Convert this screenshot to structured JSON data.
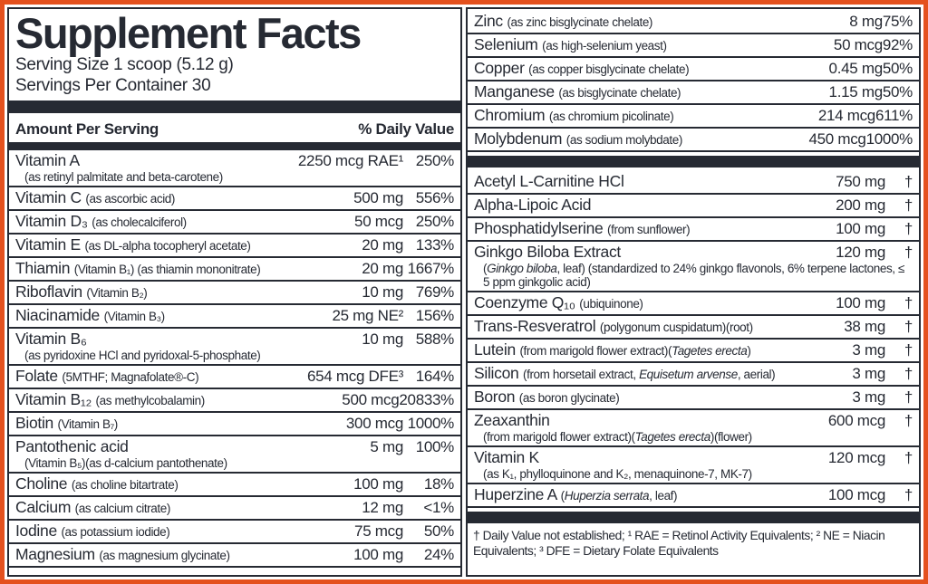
{
  "label": {
    "title": "Supplement Facts",
    "serving_size": "Serving Size 1 scoop (5.12 g)",
    "servings_per_container": "Servings Per Container 30",
    "column_headers": {
      "amount": "Amount Per Serving",
      "daily_value": "% Daily Value"
    },
    "colors": {
      "border_accent": "#e4511e",
      "ink": "#262a33",
      "background": "#ffffff"
    },
    "footnote": "† Daily Value not established; ¹ RAE = Retinol Activity Equivalents; ² NE = Niacin Equivalents; ³ DFE = Dietary Folate Equivalents",
    "left_rows": [
      {
        "name": [
          [
            "Vitamin A",
            "m"
          ]
        ],
        "amount": "2250 mcg RAE¹",
        "dv": "250%",
        "sub": [
          [
            "(as retinyl palmitate and beta-carotene)",
            "p"
          ]
        ]
      },
      {
        "name": [
          [
            "Vitamin C ",
            "m"
          ],
          [
            "(as ascorbic acid)",
            "s"
          ]
        ],
        "amount": "500 mg",
        "dv": "556%"
      },
      {
        "name": [
          [
            "Vitamin D₃ ",
            "m"
          ],
          [
            "(as cholecalciferol)",
            "s"
          ]
        ],
        "amount": "50 mcg",
        "dv": "250%"
      },
      {
        "name": [
          [
            "Vitamin E ",
            "m"
          ],
          [
            "(as DL-alpha tocopheryl acetate)",
            "s"
          ]
        ],
        "amount": "20 mg",
        "dv": "133%"
      },
      {
        "name": [
          [
            "Thiamin ",
            "m"
          ],
          [
            "(Vitamin B₁) (as thiamin mononitrate)",
            "s"
          ]
        ],
        "amount": "20 mg",
        "dv": "1667%"
      },
      {
        "name": [
          [
            "Riboflavin ",
            "m"
          ],
          [
            "(Vitamin B₂)",
            "s"
          ]
        ],
        "amount": "10 mg",
        "dv": "769%"
      },
      {
        "name": [
          [
            "Niacinamide ",
            "m"
          ],
          [
            "(Vitamin B₃)",
            "s"
          ]
        ],
        "amount": "25 mg NE²",
        "dv": "156%"
      },
      {
        "name": [
          [
            "Vitamin B₆",
            "m"
          ]
        ],
        "amount": "10 mg",
        "dv": "588%",
        "sub": [
          [
            "(as pyridoxine HCl and pyridoxal-5-phosphate)",
            "p"
          ]
        ]
      },
      {
        "name": [
          [
            "Folate ",
            "m"
          ],
          [
            "(5MTHF;  Magnafolate®-C)",
            "s"
          ]
        ],
        "amount": "654 mcg DFE³",
        "dv": "164%"
      },
      {
        "name": [
          [
            "Vitamin B₁₂ ",
            "m"
          ],
          [
            "(as methylcobalamin)",
            "s"
          ]
        ],
        "amount": "500 mcg",
        "dv": "20833%"
      },
      {
        "name": [
          [
            "Biotin ",
            "m"
          ],
          [
            "(Vitamin B₇)",
            "s"
          ]
        ],
        "amount": "300 mcg",
        "dv": "1000%"
      },
      {
        "name": [
          [
            "Pantothenic acid",
            "m"
          ]
        ],
        "amount": "5 mg",
        "dv": "100%",
        "sub": [
          [
            "(Vitamin B₅)(as d-calcium pantothenate)",
            "p"
          ]
        ]
      },
      {
        "name": [
          [
            "Choline ",
            "m"
          ],
          [
            "(as choline bitartrate)",
            "s"
          ]
        ],
        "amount": "100 mg",
        "dv": "18%"
      },
      {
        "name": [
          [
            "Calcium ",
            "m"
          ],
          [
            "(as calcium citrate)",
            "s"
          ]
        ],
        "amount": "12 mg",
        "dv": "<1%"
      },
      {
        "name": [
          [
            "Iodine ",
            "m"
          ],
          [
            "(as potassium iodide)",
            "s"
          ]
        ],
        "amount": "75 mcg",
        "dv": "50%"
      },
      {
        "name": [
          [
            "Magnesium ",
            "m"
          ],
          [
            "(as magnesium glycinate)",
            "s"
          ]
        ],
        "amount": "100 mg",
        "dv": "24%"
      }
    ],
    "right_rows": [
      {
        "name": [
          [
            "Zinc ",
            "m"
          ],
          [
            "(as zinc bisglycinate chelate)",
            "s"
          ]
        ],
        "amount": "8 mg",
        "dv": "75%"
      },
      {
        "name": [
          [
            "Selenium ",
            "m"
          ],
          [
            "(as high-selenium yeast)",
            "s"
          ]
        ],
        "amount": "50 mcg",
        "dv": "92%"
      },
      {
        "name": [
          [
            "Copper ",
            "m"
          ],
          [
            "(as copper bisglycinate chelate)",
            "s"
          ]
        ],
        "amount": "0.45 mg",
        "dv": "50%"
      },
      {
        "name": [
          [
            "Manganese ",
            "m"
          ],
          [
            "(as bisglycinate chelate)",
            "s"
          ]
        ],
        "amount": "1.15 mg",
        "dv": "50%"
      },
      {
        "name": [
          [
            "Chromium ",
            "m"
          ],
          [
            "(as chromium picolinate)",
            "s"
          ]
        ],
        "amount": "214 mcg",
        "dv": "611%"
      },
      {
        "name": [
          [
            "Molybdenum ",
            "m"
          ],
          [
            "(as sodium molybdate)",
            "s"
          ]
        ],
        "amount": "450 mcg",
        "dv": "1000%"
      },
      {
        "bar": true
      },
      {
        "name": [
          [
            "Acetyl L-Carnitine HCl",
            "m"
          ]
        ],
        "amount": "750 mg",
        "dv": "†"
      },
      {
        "name": [
          [
            "Alpha-Lipoic Acid",
            "m"
          ]
        ],
        "amount": "200 mg",
        "dv": "†"
      },
      {
        "name": [
          [
            "Phosphatidylserine ",
            "m"
          ],
          [
            "(from sunflower)",
            "s"
          ]
        ],
        "amount": "100 mg",
        "dv": "†"
      },
      {
        "name": [
          [
            "Ginkgo Biloba Extract",
            "m"
          ]
        ],
        "amount": "120 mg",
        "dv": "†",
        "sub": [
          [
            "(",
            "p"
          ],
          [
            "Ginkgo biloba",
            "i"
          ],
          [
            ", leaf) (standardized to 24% ginkgo flavonols, 6% terpene lactones, ≤ 5 ppm ginkgolic acid)",
            "p"
          ]
        ]
      },
      {
        "name": [
          [
            "Coenzyme Q₁₀ ",
            "m"
          ],
          [
            "(ubiquinone)",
            "s"
          ]
        ],
        "amount": "100 mg",
        "dv": "†"
      },
      {
        "name": [
          [
            "Trans-Resveratrol ",
            "m"
          ],
          [
            "(polygonum cuspidatum)(root)",
            "s"
          ]
        ],
        "amount": "38 mg",
        "dv": "†"
      },
      {
        "name": [
          [
            "Lutein ",
            "m"
          ],
          [
            "(from marigold flower extract)(",
            "s"
          ],
          [
            "Tagetes erecta",
            "i"
          ],
          [
            ")",
            "s"
          ]
        ],
        "amount": "3 mg",
        "dv": "†"
      },
      {
        "name": [
          [
            "Silicon ",
            "m"
          ],
          [
            "(from horsetail extract, ",
            "s"
          ],
          [
            "Equisetum arvense",
            "i"
          ],
          [
            ", aerial)",
            "s"
          ]
        ],
        "amount": "3 mg",
        "dv": "†"
      },
      {
        "name": [
          [
            "Boron ",
            "m"
          ],
          [
            "(as boron glycinate)",
            "s"
          ]
        ],
        "amount": "3 mg",
        "dv": "†"
      },
      {
        "name": [
          [
            "Zeaxanthin",
            "m"
          ]
        ],
        "amount": "600 mcg",
        "dv": "†",
        "sub": [
          [
            "(from marigold flower extract)(",
            "p"
          ],
          [
            "Tagetes erecta",
            "i"
          ],
          [
            ")(flower)",
            "p"
          ]
        ]
      },
      {
        "name": [
          [
            "Vitamin K",
            "m"
          ]
        ],
        "amount": "120 mcg",
        "dv": "†",
        "sub": [
          [
            "(as K₁, phylloquinone and K₂, menaquinone-7, MK-7)",
            "p"
          ]
        ]
      },
      {
        "name": [
          [
            "Huperzine A ",
            "m"
          ],
          [
            "(",
            "s"
          ],
          [
            "Huperzia serrata",
            "i"
          ],
          [
            ", leaf)",
            "s"
          ]
        ],
        "amount": "100 mcg",
        "dv": "†"
      },
      {
        "bar": true
      }
    ]
  }
}
